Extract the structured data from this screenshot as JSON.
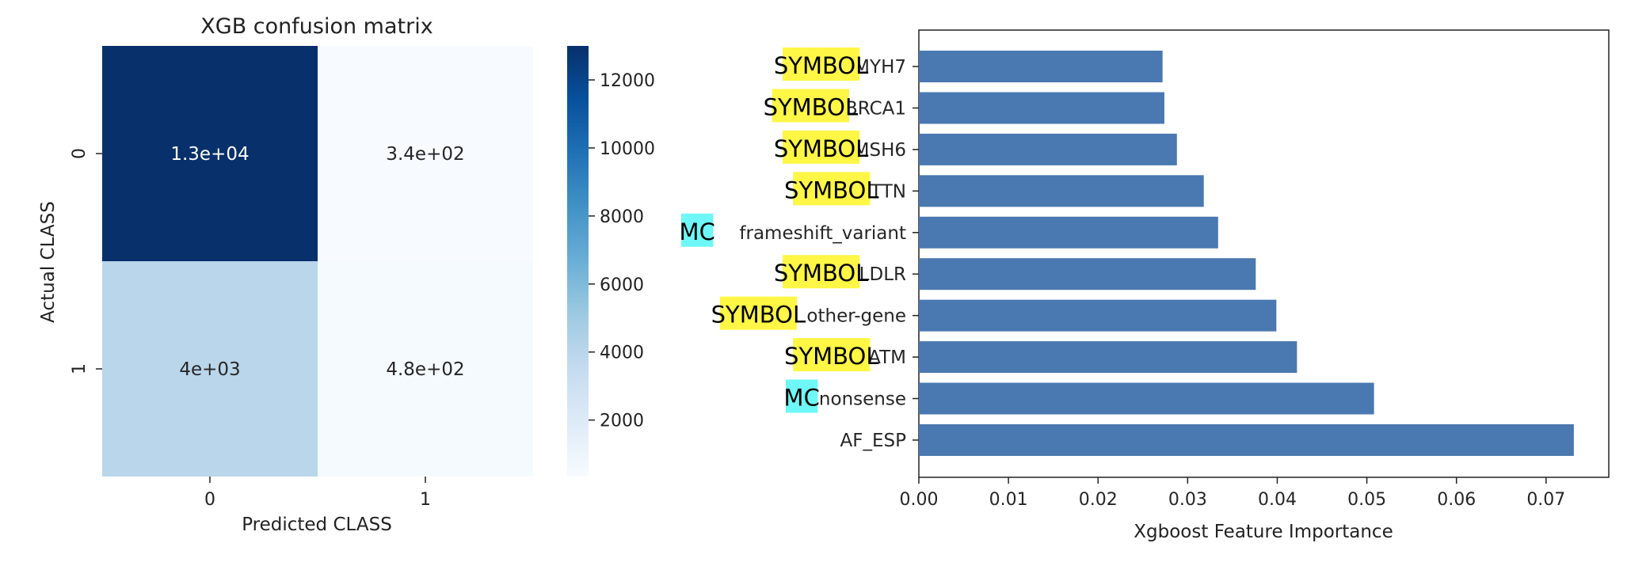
{
  "chart_data": [
    {
      "type": "heatmap",
      "title": "XGB confusion matrix",
      "xlabel": "Predicted CLASS",
      "ylabel": "Actual CLASS",
      "x_categories": [
        "0",
        "1"
      ],
      "y_categories": [
        "0",
        "1"
      ],
      "values": [
        [
          13000,
          340
        ],
        [
          4000,
          480
        ]
      ],
      "annotations": [
        [
          "1.3e+04",
          "3.4e+02"
        ],
        [
          "4e+03",
          "4.8e+02"
        ]
      ],
      "colormap": "Blues",
      "colorbar": {
        "min": 340,
        "max": 13000,
        "ticks": [
          2000,
          4000,
          6000,
          8000,
          10000,
          12000
        ]
      }
    },
    {
      "type": "bar",
      "orientation": "horizontal",
      "categories": [
        "MYH7",
        "BRCA1",
        "MSH6",
        "TTN",
        "frameshift_variant",
        "LDLR",
        "other-gene",
        "ATM",
        "nonsense",
        "AF_ESP"
      ],
      "values": [
        0.0272,
        0.0274,
        0.0288,
        0.0318,
        0.0334,
        0.0376,
        0.0399,
        0.0422,
        0.0508,
        0.0731
      ],
      "xlabel": "Xgboost Feature Importance",
      "xlim": [
        0,
        0.077
      ],
      "xticks": [
        "0.00",
        "0.01",
        "0.02",
        "0.03",
        "0.04",
        "0.05",
        "0.06",
        "0.07"
      ],
      "bar_color": "#4a78b0",
      "category_tags": [
        "SYMBOL",
        "SYMBOL",
        "SYMBOL",
        "SYMBOL",
        "MC",
        "SYMBOL",
        "SYMBOL",
        "SYMBOL",
        "MC",
        ""
      ],
      "tag_colors": {
        "SYMBOL": "#fff645",
        "MC": "#6ef7f7"
      }
    }
  ]
}
